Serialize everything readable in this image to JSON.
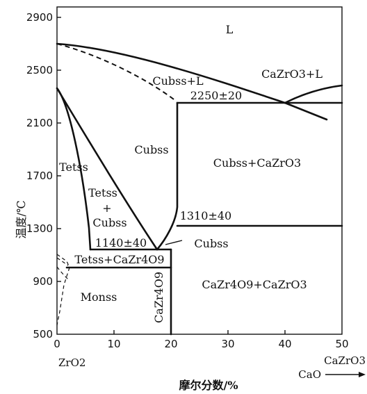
{
  "axes": {
    "ylabel": "温度/℃",
    "xlabel": "摩尔分数/%",
    "x_ticks": [
      "0",
      "10",
      "20",
      "30",
      "40",
      "50"
    ],
    "y_ticks": [
      "500",
      "900",
      "1300",
      "1700",
      "2100",
      "2500",
      "2900"
    ],
    "x_left_end": "ZrO2",
    "x_right_end_top": "CaZrO3",
    "x_right_end_bottom": "CaO"
  },
  "regions": {
    "liquid": "L",
    "cubss_l": "Cubss+L",
    "cazro3_l": "CaZrO3+L",
    "cubss": "Cubss",
    "cubss_cazro3": "Cubss+CaZrO3",
    "tetss": "Tetss",
    "tetss_plus": "Tetss",
    "plus": "+",
    "cubss_small": "Cubss",
    "tetss_cazr4o9": "Tetss+CaZr4O9",
    "monss": "Monss",
    "cazr4o9_cazro3": "CaZr4O9+CaZrO3",
    "cazr4o9_vertical": "CaZr4O9",
    "cubss_pointer": "Cubss"
  },
  "temperatures": {
    "eutectic": "2250±20",
    "eutectoid_high": "1310±40",
    "eutectoid_low": "1140±40"
  }
}
